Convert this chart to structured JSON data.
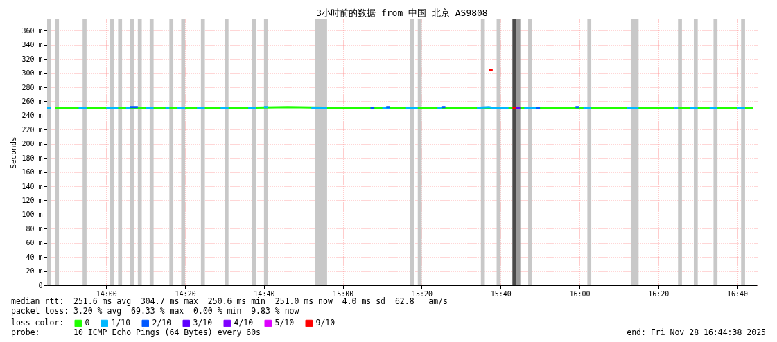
{
  "chart_data": {
    "type": "line",
    "title": "3小时前的数据 from 中国 北京 AS9808",
    "ylabel": "Seconds",
    "legend_title": "loss color:",
    "legend": "bottom",
    "grid": true,
    "xlim": [
      "2025-11-28T13:45",
      "2025-11-28T16:45"
    ],
    "xticks": [
      {
        "value": "2025-11-28T14:00",
        "label": "14:00"
      },
      {
        "value": "2025-11-28T14:20",
        "label": "14:20"
      },
      {
        "value": "2025-11-28T14:40",
        "label": "14:40"
      },
      {
        "value": "2025-11-28T15:00",
        "label": "15:00"
      },
      {
        "value": "2025-11-28T15:20",
        "label": "15:20"
      },
      {
        "value": "2025-11-28T15:40",
        "label": "15:40"
      },
      {
        "value": "2025-11-28T16:00",
        "label": "16:00"
      },
      {
        "value": "2025-11-28T16:20",
        "label": "16:20"
      },
      {
        "value": "2025-11-28T16:40",
        "label": "16:40"
      }
    ],
    "ylim": [
      0,
      376
    ],
    "yticks": [
      0,
      {
        "value": 20,
        "label": "20 m"
      },
      {
        "value": 40,
        "label": "40 m"
      },
      {
        "value": 60,
        "label": "60 m"
      },
      {
        "value": 80,
        "label": "80 m"
      },
      {
        "value": 100,
        "label": "100 m"
      },
      {
        "value": 120,
        "label": "120 m"
      },
      {
        "value": 140,
        "label": "140 m"
      },
      {
        "value": 160,
        "label": "160 m"
      },
      {
        "value": 180,
        "label": "180 m"
      },
      {
        "value": 200,
        "label": "200 m"
      },
      {
        "value": 220,
        "label": "220 m"
      },
      {
        "value": 240,
        "label": "240 m"
      },
      {
        "value": 260,
        "label": "260 m"
      },
      {
        "value": 280,
        "label": "280 m"
      },
      {
        "value": 300,
        "label": "300 m"
      },
      {
        "value": 320,
        "label": "320 m"
      },
      {
        "value": 340,
        "label": "340 m"
      },
      {
        "value": 360,
        "label": "360 m"
      }
    ],
    "series": [
      {
        "name": "0",
        "color": "#20ff00",
        "x": [
          "2025-11-28T13:47",
          "2025-11-28T13:55",
          "2025-11-28T14:05",
          "2025-11-28T14:15",
          "2025-11-28T14:25",
          "2025-11-28T14:35",
          "2025-11-28T14:46",
          "2025-11-28T14:58",
          "2025-11-28T15:05",
          "2025-11-28T15:15",
          "2025-11-28T15:25",
          "2025-11-28T15:32",
          "2025-11-28T15:45",
          "2025-11-28T15:55",
          "2025-11-28T16:05",
          "2025-11-28T16:15",
          "2025-11-28T16:25",
          "2025-11-28T16:35",
          "2025-11-28T16:44"
        ],
        "values": [
          251,
          251,
          251,
          251,
          251,
          251,
          252,
          251,
          251,
          251,
          251,
          251,
          251,
          251,
          251,
          251,
          251,
          251,
          251
        ]
      },
      {
        "name": "1/10",
        "color": "#00b8ff",
        "x": [
          "2025-11-28T13:45",
          "2025-11-28T13:46",
          "2025-11-28T13:50",
          "2025-11-28T13:53",
          "2025-11-28T13:55",
          "2025-11-28T13:58",
          "2025-11-28T14:00",
          "2025-11-28T14:03",
          "2025-11-28T14:04",
          "2025-11-28T14:05",
          "2025-11-28T14:06",
          "2025-11-28T14:08",
          "2025-11-28T14:10",
          "2025-11-28T14:12",
          "2025-11-28T14:14",
          "2025-11-28T14:15",
          "2025-11-28T14:16",
          "2025-11-28T14:17",
          "2025-11-28T14:18",
          "2025-11-28T14:20",
          "2025-11-28T14:22",
          "2025-11-28T14:23",
          "2025-11-28T14:25",
          "2025-11-28T14:27",
          "2025-11-28T14:29",
          "2025-11-28T14:31",
          "2025-11-28T14:33",
          "2025-11-28T14:36",
          "2025-11-28T14:38",
          "2025-11-28T14:39",
          "2025-11-28T14:40",
          "2025-11-28T14:41",
          "2025-11-28T14:46",
          "2025-11-28T14:52",
          "2025-11-28T14:56",
          "2025-11-28T15:03",
          "2025-11-28T15:10",
          "2025-11-28T15:12",
          "2025-11-28T15:14",
          "2025-11-28T15:16",
          "2025-11-28T15:19",
          "2025-11-28T15:21",
          "2025-11-28T15:24",
          "2025-11-28T15:25",
          "2025-11-28T15:30",
          "2025-11-28T15:34",
          "2025-11-28T15:37",
          "2025-11-28T15:38",
          "2025-11-28T15:42",
          "2025-11-28T15:44",
          "2025-11-28T15:46",
          "2025-11-28T15:49",
          "2025-11-28T15:55",
          "2025-11-28T16:01",
          "2025-11-28T16:03",
          "2025-11-28T16:08",
          "2025-11-28T16:12",
          "2025-11-28T16:15",
          "2025-11-28T16:20",
          "2025-11-28T16:24",
          "2025-11-28T16:25",
          "2025-11-28T16:26",
          "2025-11-28T16:28",
          "2025-11-28T16:30",
          "2025-11-28T16:31",
          "2025-11-28T16:33",
          "2025-11-28T16:35",
          "2025-11-28T16:37",
          "2025-11-28T16:40",
          "2025-11-28T16:42"
        ],
        "values": [
          251,
          251,
          null,
          251,
          251,
          null,
          251,
          251,
          null,
          251,
          251,
          null,
          251,
          251,
          null,
          251,
          251,
          null,
          251,
          251,
          null,
          251,
          251,
          null,
          251,
          251,
          null,
          251,
          251,
          null,
          252,
          252,
          null,
          251,
          251,
          null,
          251,
          251,
          null,
          251,
          251,
          null,
          251,
          251,
          null,
          251,
          252,
          251,
          251,
          null,
          251,
          251,
          null,
          251,
          251,
          null,
          251,
          251,
          null,
          251,
          251,
          null,
          251,
          251,
          null,
          251,
          251,
          null,
          251,
          251
        ]
      },
      {
        "name": "2/10",
        "color": "#0059ff",
        "x": [
          "2025-11-28T14:06",
          "2025-11-28T14:08",
          "2025-11-28T14:30",
          "2025-11-28T15:07",
          "2025-11-28T15:08",
          "2025-11-28T15:09",
          "2025-11-28T15:11",
          "2025-11-28T15:12",
          "2025-11-28T15:20",
          "2025-11-28T15:25",
          "2025-11-28T15:26",
          "2025-11-28T15:40",
          "2025-11-28T15:49",
          "2025-11-28T15:50",
          "2025-11-28T15:55",
          "2025-11-28T15:59",
          "2025-11-28T16:00"
        ],
        "values": [
          252,
          252,
          null,
          251,
          251,
          null,
          252,
          252,
          null,
          252,
          252,
          null,
          251,
          251,
          null,
          252,
          252
        ]
      },
      {
        "name": "3/10",
        "color": "#5e00ff",
        "x": [
          "2025-11-28T15:44",
          "2025-11-28T15:45"
        ],
        "values": [
          251,
          251
        ]
      },
      {
        "name": "4/10",
        "color": "#7e00ff"
      },
      {
        "name": "5/10",
        "color": "#dd00ff"
      },
      {
        "name": "9/10",
        "color": "#ff0000",
        "x": [
          "2025-11-28T15:37",
          "2025-11-28T15:38",
          "2025-11-28T15:40",
          "2025-11-28T15:43",
          "2025-11-28T15:44"
        ],
        "values": [
          305,
          305,
          null,
          251,
          251
        ]
      }
    ],
    "bands": [
      {
        "axis": "x",
        "from": "2025-11-28T13:45",
        "to": "2025-11-28T13:46",
        "color": "#c8c8c8"
      },
      {
        "axis": "x",
        "from": "2025-11-28T13:47",
        "to": "2025-11-28T13:48",
        "color": "#c8c8c8"
      },
      {
        "axis": "x",
        "from": "2025-11-28T13:54",
        "to": "2025-11-28T13:55",
        "color": "#c8c8c8"
      },
      {
        "axis": "x",
        "from": "2025-11-28T14:01",
        "to": "2025-11-28T14:02",
        "color": "#c8c8c8"
      },
      {
        "axis": "x",
        "from": "2025-11-28T14:03",
        "to": "2025-11-28T14:04",
        "color": "#c8c8c8"
      },
      {
        "axis": "x",
        "from": "2025-11-28T14:06",
        "to": "2025-11-28T14:07",
        "color": "#c8c8c8"
      },
      {
        "axis": "x",
        "from": "2025-11-28T14:08",
        "to": "2025-11-28T14:09",
        "color": "#c8c8c8"
      },
      {
        "axis": "x",
        "from": "2025-11-28T14:11",
        "to": "2025-11-28T14:12",
        "color": "#c8c8c8"
      },
      {
        "axis": "x",
        "from": "2025-11-28T14:16",
        "to": "2025-11-28T14:17",
        "color": "#c8c8c8"
      },
      {
        "axis": "x",
        "from": "2025-11-28T14:19",
        "to": "2025-11-28T14:20",
        "color": "#c8c8c8"
      },
      {
        "axis": "x",
        "from": "2025-11-28T14:24",
        "to": "2025-11-28T14:25",
        "color": "#c8c8c8"
      },
      {
        "axis": "x",
        "from": "2025-11-28T14:30",
        "to": "2025-11-28T14:31",
        "color": "#c8c8c8"
      },
      {
        "axis": "x",
        "from": "2025-11-28T14:37",
        "to": "2025-11-28T14:38",
        "color": "#c8c8c8"
      },
      {
        "axis": "x",
        "from": "2025-11-28T14:40",
        "to": "2025-11-28T14:41",
        "color": "#c8c8c8"
      },
      {
        "axis": "x",
        "from": "2025-11-28T14:53",
        "to": "2025-11-28T14:56",
        "color": "#c8c8c8"
      },
      {
        "axis": "x",
        "from": "2025-11-28T15:17",
        "to": "2025-11-28T15:18",
        "color": "#c8c8c8"
      },
      {
        "axis": "x",
        "from": "2025-11-28T15:19",
        "to": "2025-11-28T15:20",
        "color": "#c8c8c8"
      },
      {
        "axis": "x",
        "from": "2025-11-28T15:35",
        "to": "2025-11-28T15:36",
        "color": "#c8c8c8"
      },
      {
        "axis": "x",
        "from": "2025-11-28T15:39",
        "to": "2025-11-28T15:40",
        "color": "#c8c8c8"
      },
      {
        "axis": "x",
        "from": "2025-11-28T15:43",
        "to": "2025-11-28T15:44",
        "color": "#4a4a4a"
      },
      {
        "axis": "x",
        "from": "2025-11-28T15:44",
        "to": "2025-11-28T15:45",
        "color": "#9a9a9a"
      },
      {
        "axis": "x",
        "from": "2025-11-28T15:47",
        "to": "2025-11-28T15:48",
        "color": "#c8c8c8"
      },
      {
        "axis": "x",
        "from": "2025-11-28T16:02",
        "to": "2025-11-28T16:03",
        "color": "#c8c8c8"
      },
      {
        "axis": "x",
        "from": "2025-11-28T16:13",
        "to": "2025-11-28T16:15",
        "color": "#c8c8c8"
      },
      {
        "axis": "x",
        "from": "2025-11-28T16:25",
        "to": "2025-11-28T16:26",
        "color": "#c8c8c8"
      },
      {
        "axis": "x",
        "from": "2025-11-28T16:29",
        "to": "2025-11-28T16:30",
        "color": "#c8c8c8"
      },
      {
        "axis": "x",
        "from": "2025-11-28T16:34",
        "to": "2025-11-28T16:35",
        "color": "#c8c8c8"
      },
      {
        "axis": "x",
        "from": "2025-11-28T16:41",
        "to": "2025-11-28T16:42",
        "color": "#c8c8c8"
      }
    ],
    "annotations": [
      "median rtt:  251.6 ms avg  304.7 ms max  250.6 ms min  251.0 ms now  4.0 ms sd  62.8   am/s",
      "packet loss: 3.20 % avg  69.33 % max  0.00 % min  9.83 % now",
      "probe:       10 ICMP Echo Pings (64 Bytes) every 60s",
      "end: Fri Nov 28 16:44:38 2025"
    ]
  }
}
